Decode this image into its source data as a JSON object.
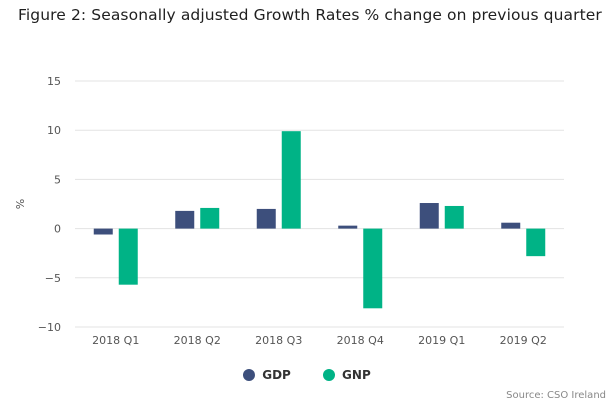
{
  "chart_data": {
    "type": "bar",
    "title": "Figure 2: Seasonally adjusted Growth Rates % change on previous quarter",
    "xlabel": "",
    "ylabel": "%",
    "ylim": [
      -10,
      15
    ],
    "yticks": [
      15,
      10,
      5,
      0,
      -5,
      -10
    ],
    "ytick_labels": [
      "15",
      "10",
      "5",
      "0",
      "−5",
      "−10"
    ],
    "grid": true,
    "legend_position": "bottom",
    "categories": [
      "2018 Q1",
      "2018 Q2",
      "2018 Q3",
      "2018 Q4",
      "2019 Q1",
      "2019 Q2"
    ],
    "series": [
      {
        "name": "GDP",
        "color": "#3d4f7c",
        "values": [
          -0.6,
          1.8,
          2.0,
          0.3,
          2.6,
          0.6
        ]
      },
      {
        "name": "GNP",
        "color": "#00b386",
        "values": [
          -5.7,
          2.1,
          9.9,
          -8.1,
          2.3,
          -2.8
        ]
      }
    ],
    "source": "Source: CSO Ireland"
  }
}
